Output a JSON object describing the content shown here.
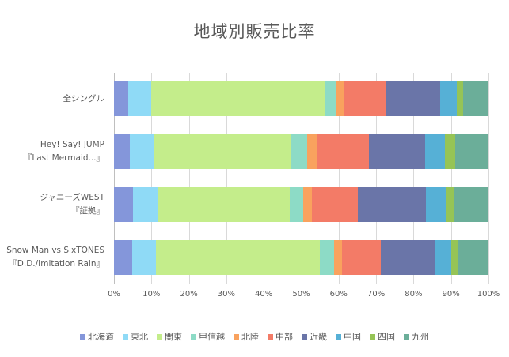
{
  "chart_data": {
    "type": "bar",
    "orientation": "horizontal",
    "stacked": "percent",
    "title": "地域別販売比率",
    "xlabel": "",
    "ylabel": "",
    "xlim": [
      0,
      100
    ],
    "x_ticks": [
      "0%",
      "10%",
      "20%",
      "30%",
      "40%",
      "50%",
      "60%",
      "70%",
      "80%",
      "90%",
      "100%"
    ],
    "grid": true,
    "legend_position": "bottom",
    "categories": [
      "全シングル",
      "Hey! Say! JUMP 『Last Mermaid...』",
      "ジャニーズWEST 『証拠』",
      "Snow Man vs SixTONES 『D.D./Imitation Rain』"
    ],
    "series": [
      {
        "name": "北海道",
        "color": "#8496DA",
        "values": [
          3.8,
          4.2,
          5.0,
          4.8
        ]
      },
      {
        "name": "東北",
        "color": "#8FDAF6",
        "values": [
          6.2,
          6.6,
          6.8,
          6.4
        ]
      },
      {
        "name": "関東",
        "color": "#C4ED8B",
        "values": [
          46.4,
          36.3,
          35.1,
          43.8
        ]
      },
      {
        "name": "甲信越",
        "color": "#8DDBC6",
        "values": [
          3.0,
          4.5,
          3.6,
          3.8
        ]
      },
      {
        "name": "北陸",
        "color": "#F9A25E",
        "values": [
          1.9,
          2.5,
          2.4,
          2.1
        ]
      },
      {
        "name": "中部",
        "color": "#F37B67",
        "values": [
          11.4,
          14.0,
          12.2,
          10.3
        ]
      },
      {
        "name": "近畿",
        "color": "#6A75A8",
        "values": [
          14.4,
          15.0,
          18.2,
          14.6
        ]
      },
      {
        "name": "中国",
        "color": "#56B0D6",
        "values": [
          4.4,
          5.3,
          5.3,
          4.3
        ]
      },
      {
        "name": "四国",
        "color": "#96C456",
        "values": [
          1.7,
          2.7,
          2.3,
          1.7
        ]
      },
      {
        "name": "九州",
        "color": "#6BAE99",
        "values": [
          6.8,
          8.9,
          9.1,
          8.2
        ]
      }
    ]
  },
  "labels": {
    "title": "地域別販売比率",
    "categories": [
      {
        "line1": "全シングル",
        "line2": ""
      },
      {
        "line1": "Hey! Say! JUMP",
        "line2": "『Last Mermaid...』"
      },
      {
        "line1": "ジャニーズWEST",
        "line2": "『証拠』"
      },
      {
        "line1": "Snow Man vs SixTONES",
        "line2": "『D.D./Imitation Rain』"
      }
    ],
    "ticks": [
      "0%",
      "10%",
      "20%",
      "30%",
      "40%",
      "50%",
      "60%",
      "70%",
      "80%",
      "90%",
      "100%"
    ],
    "legend": [
      "北海道",
      "東北",
      "関東",
      "甲信越",
      "北陸",
      "中部",
      "近畿",
      "中国",
      "四国",
      "九州"
    ]
  }
}
